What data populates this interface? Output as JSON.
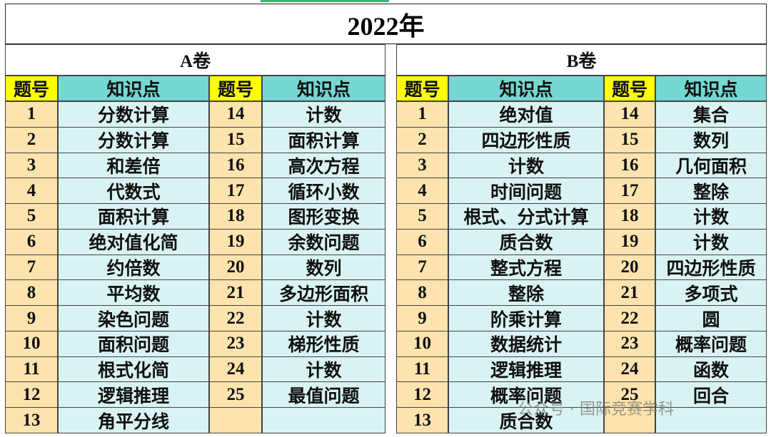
{
  "title": "2022年",
  "headers": [
    "题号",
    "知识点"
  ],
  "papers": [
    {
      "name": "A卷",
      "left": [
        {
          "no": "1",
          "topic": "分数计算"
        },
        {
          "no": "2",
          "topic": "分数计算"
        },
        {
          "no": "3",
          "topic": "和差倍"
        },
        {
          "no": "4",
          "topic": "代数式"
        },
        {
          "no": "5",
          "topic": "面积计算"
        },
        {
          "no": "6",
          "topic": "绝对值化简"
        },
        {
          "no": "7",
          "topic": "约倍数"
        },
        {
          "no": "8",
          "topic": "平均数"
        },
        {
          "no": "9",
          "topic": "染色问题"
        },
        {
          "no": "10",
          "topic": "面积问题"
        },
        {
          "no": "11",
          "topic": "根式化简"
        },
        {
          "no": "12",
          "topic": "逻辑推理"
        },
        {
          "no": "13",
          "topic": "角平分线"
        }
      ],
      "right": [
        {
          "no": "14",
          "topic": "计数"
        },
        {
          "no": "15",
          "topic": "面积计算"
        },
        {
          "no": "16",
          "topic": "高次方程"
        },
        {
          "no": "17",
          "topic": "循环小数"
        },
        {
          "no": "18",
          "topic": "图形变换"
        },
        {
          "no": "19",
          "topic": "余数问题"
        },
        {
          "no": "20",
          "topic": "数列"
        },
        {
          "no": "21",
          "topic": "多边形面积"
        },
        {
          "no": "22",
          "topic": "计数"
        },
        {
          "no": "23",
          "topic": "梯形性质"
        },
        {
          "no": "24",
          "topic": "计数"
        },
        {
          "no": "25",
          "topic": "最值问题"
        }
      ]
    },
    {
      "name": "B卷",
      "left": [
        {
          "no": "1",
          "topic": "绝对值"
        },
        {
          "no": "2",
          "topic": "四边形性质"
        },
        {
          "no": "3",
          "topic": "计数"
        },
        {
          "no": "4",
          "topic": "时间问题"
        },
        {
          "no": "5",
          "topic": "根式、分式计算"
        },
        {
          "no": "6",
          "topic": "质合数"
        },
        {
          "no": "7",
          "topic": "整式方程"
        },
        {
          "no": "8",
          "topic": "整除"
        },
        {
          "no": "9",
          "topic": "阶乘计算"
        },
        {
          "no": "10",
          "topic": "数据统计"
        },
        {
          "no": "11",
          "topic": "逻辑推理"
        },
        {
          "no": "12",
          "topic": "概率问题"
        },
        {
          "no": "13",
          "topic": "质合数"
        }
      ],
      "right": [
        {
          "no": "14",
          "topic": "集合"
        },
        {
          "no": "15",
          "topic": "数列"
        },
        {
          "no": "16",
          "topic": "几何面积"
        },
        {
          "no": "17",
          "topic": "整除"
        },
        {
          "no": "18",
          "topic": "计数"
        },
        {
          "no": "19",
          "topic": "计数"
        },
        {
          "no": "20",
          "topic": "四边形性质"
        },
        {
          "no": "21",
          "topic": "多项式"
        },
        {
          "no": "22",
          "topic": "圆"
        },
        {
          "no": "23",
          "topic": "概率问题"
        },
        {
          "no": "24",
          "topic": "函数"
        },
        {
          "no": "25",
          "topic": "回合"
        }
      ]
    }
  ],
  "watermark": "公众号 · 国际竞赛学科"
}
